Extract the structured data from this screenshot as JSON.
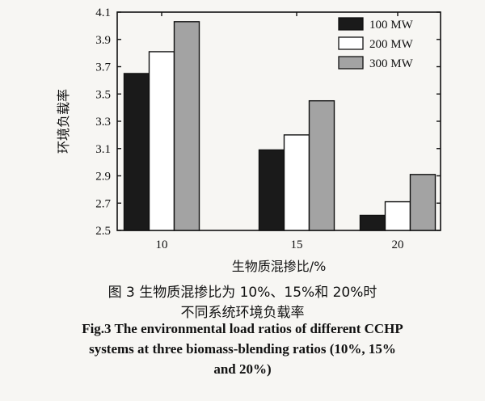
{
  "chart_data": {
    "type": "bar",
    "categories": [
      "10",
      "15",
      "20"
    ],
    "series": [
      {
        "name": "100 MW",
        "values": [
          3.65,
          3.09,
          2.61
        ],
        "color": "#1a1a1a"
      },
      {
        "name": "200 MW",
        "values": [
          3.81,
          3.2,
          2.71
        ],
        "color": "#ffffff"
      },
      {
        "name": "300 MW",
        "values": [
          4.03,
          3.45,
          2.91
        ],
        "color": "#a3a3a3"
      }
    ],
    "xlabel": "生物质混掺比/%",
    "ylabel": "环境负载率",
    "ylim": [
      2.5,
      4.1
    ],
    "yticks": [
      "2.5",
      "2.7",
      "2.9",
      "3.1",
      "3.3",
      "3.5",
      "3.7",
      "3.9",
      "4.1"
    ],
    "legend_position": "top-right",
    "grid": false
  },
  "caption": {
    "cn_line1": "图 3  生物质混掺比为 10%、15%和 20%时",
    "cn_line2": "不同系统环境负载率",
    "en_line1": "Fig.3 The environmental load ratios of different CCHP",
    "en_line2": "systems at three biomass-blending ratios (10%, 15%",
    "en_line3": "and 20%)"
  }
}
